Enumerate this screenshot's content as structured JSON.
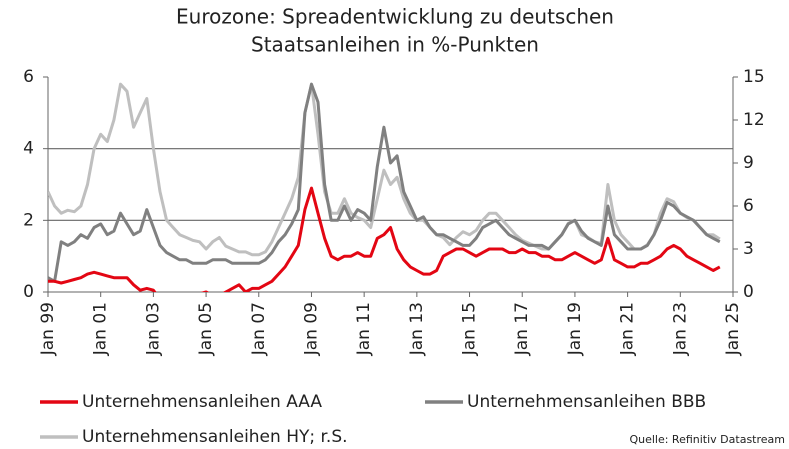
{
  "chart_data": {
    "type": "line",
    "title": [
      "Eurozone: Spreadentwicklung zu deutschen",
      "Staatsanleihen in %-Punkten"
    ],
    "source": "Quelle: Refinitiv Datastream",
    "xlim": [
      1999,
      2025
    ],
    "xticks": [
      {
        "value": 1999,
        "label": "Jan 99"
      },
      {
        "value": 2001,
        "label": "Jan 01"
      },
      {
        "value": 2003,
        "label": "Jan 03"
      },
      {
        "value": 2005,
        "label": "Jan 05"
      },
      {
        "value": 2007,
        "label": "Jan 07"
      },
      {
        "value": 2009,
        "label": "Jan 09"
      },
      {
        "value": 2011,
        "label": "Jan 11"
      },
      {
        "value": 2013,
        "label": "Jan 13"
      },
      {
        "value": 2015,
        "label": "Jan 15"
      },
      {
        "value": 2017,
        "label": "Jan 17"
      },
      {
        "value": 2019,
        "label": "Jan 19"
      },
      {
        "value": 2021,
        "label": "Jan 21"
      },
      {
        "value": 2023,
        "label": "Jan 23"
      },
      {
        "value": 2025,
        "label": "Jan 25"
      }
    ],
    "ylim": [
      0,
      6
    ],
    "yticks": [
      0,
      2,
      4,
      6
    ],
    "y2lim": [
      0,
      15
    ],
    "y2ticks": [
      0,
      3,
      6,
      9,
      12,
      15
    ],
    "grid": true,
    "x": [
      1999,
      1999.25,
      1999.5,
      1999.75,
      2000,
      2000.25,
      2000.5,
      2000.75,
      2001,
      2001.25,
      2001.5,
      2001.75,
      2002,
      2002.25,
      2002.5,
      2002.75,
      2003,
      2003.25,
      2003.5,
      2003.75,
      2004,
      2004.25,
      2004.5,
      2004.75,
      2005,
      2005.25,
      2005.5,
      2005.75,
      2006,
      2006.25,
      2006.5,
      2006.75,
      2007,
      2007.25,
      2007.5,
      2007.75,
      2008,
      2008.25,
      2008.5,
      2008.75,
      2009,
      2009.25,
      2009.5,
      2009.75,
      2010,
      2010.25,
      2010.5,
      2010.75,
      2011,
      2011.25,
      2011.5,
      2011.75,
      2012,
      2012.25,
      2012.5,
      2012.75,
      2013,
      2013.25,
      2013.5,
      2013.75,
      2014,
      2014.25,
      2014.5,
      2014.75,
      2015,
      2015.25,
      2015.5,
      2015.75,
      2016,
      2016.25,
      2016.5,
      2016.75,
      2017,
      2017.25,
      2017.5,
      2017.75,
      2018,
      2018.25,
      2018.5,
      2018.75,
      2019,
      2019.25,
      2019.5,
      2019.75,
      2020,
      2020.25,
      2020.5,
      2020.75,
      2021,
      2021.25,
      2021.5,
      2021.75,
      2022,
      2022.25,
      2022.5,
      2022.75,
      2023,
      2023.25,
      2023.5,
      2023.75,
      2024,
      2024.25,
      2024.5
    ],
    "series": [
      {
        "name": "Unternehmensanleihen HY; r.S.",
        "color": "#bfbfbf",
        "axis": "y2",
        "values": [
          7.0,
          6.0,
          5.5,
          5.7,
          5.6,
          6.0,
          7.5,
          10.0,
          11.0,
          10.5,
          12.0,
          14.5,
          14.0,
          11.5,
          12.5,
          13.5,
          10.0,
          7.0,
          5.0,
          4.5,
          4.0,
          3.8,
          3.6,
          3.5,
          3.0,
          3.5,
          3.8,
          3.2,
          3.0,
          2.8,
          2.8,
          2.6,
          2.6,
          2.8,
          3.5,
          4.5,
          5.5,
          6.5,
          8.0,
          12.5,
          14.5,
          11.0,
          7.0,
          5.5,
          5.5,
          6.5,
          5.5,
          5.2,
          5.0,
          4.5,
          6.5,
          8.5,
          7.5,
          8.0,
          6.5,
          5.5,
          5.0,
          5.0,
          4.5,
          4.0,
          3.8,
          3.3,
          3.8,
          4.2,
          4.0,
          4.3,
          5.0,
          5.5,
          5.5,
          5.0,
          4.5,
          4.0,
          3.6,
          3.4,
          3.2,
          3.0,
          3.0,
          3.5,
          4.0,
          4.8,
          5.0,
          4.0,
          3.8,
          3.5,
          3.4,
          7.5,
          5.0,
          4.0,
          3.5,
          3.0,
          3.0,
          3.3,
          4.0,
          5.5,
          6.5,
          6.3,
          5.5,
          5.2,
          5.0,
          4.5,
          4.0,
          4.0,
          3.7
        ]
      },
      {
        "name": "Unternehmensanleihen BBB",
        "color": "#808080",
        "values": [
          0.4,
          0.3,
          1.4,
          1.3,
          1.4,
          1.6,
          1.5,
          1.8,
          1.9,
          1.6,
          1.7,
          2.2,
          1.9,
          1.6,
          1.7,
          2.3,
          1.8,
          1.3,
          1.1,
          1.0,
          0.9,
          0.9,
          0.8,
          0.8,
          0.8,
          0.9,
          0.9,
          0.9,
          0.8,
          0.8,
          0.8,
          0.8,
          0.8,
          0.9,
          1.1,
          1.4,
          1.6,
          1.9,
          2.3,
          5.0,
          5.8,
          5.3,
          3.0,
          2.0,
          2.0,
          2.4,
          2.0,
          2.3,
          2.2,
          2.0,
          3.5,
          4.6,
          3.6,
          3.8,
          2.8,
          2.4,
          2.0,
          2.1,
          1.8,
          1.6,
          1.6,
          1.5,
          1.4,
          1.3,
          1.3,
          1.5,
          1.8,
          1.9,
          2.0,
          1.8,
          1.6,
          1.5,
          1.4,
          1.3,
          1.3,
          1.3,
          1.2,
          1.4,
          1.6,
          1.9,
          2.0,
          1.7,
          1.5,
          1.4,
          1.3,
          2.4,
          1.6,
          1.4,
          1.2,
          1.2,
          1.2,
          1.3,
          1.6,
          2.0,
          2.5,
          2.4,
          2.2,
          2.1,
          2.0,
          1.8,
          1.6,
          1.5,
          1.4
        ]
      },
      {
        "name": "Unternehmensanleihen AAA",
        "color": "#e30613",
        "values": [
          0.3,
          0.3,
          0.25,
          0.3,
          0.35,
          0.4,
          0.5,
          0.55,
          0.5,
          0.45,
          0.4,
          0.4,
          0.4,
          0.2,
          0.05,
          0.1,
          0.05,
          -0.2,
          -0.3,
          -0.3,
          -0.3,
          -0.2,
          -0.1,
          -0.05,
          0.0,
          -0.1,
          -0.1,
          0.0,
          0.1,
          0.2,
          0.0,
          0.1,
          0.1,
          0.2,
          0.3,
          0.5,
          0.7,
          1.0,
          1.3,
          2.3,
          2.9,
          2.2,
          1.5,
          1.0,
          0.9,
          1.0,
          1.0,
          1.1,
          1.0,
          1.0,
          1.5,
          1.6,
          1.8,
          1.2,
          0.9,
          0.7,
          0.6,
          0.5,
          0.5,
          0.6,
          1.0,
          1.1,
          1.2,
          1.2,
          1.1,
          1.0,
          1.1,
          1.2,
          1.2,
          1.2,
          1.1,
          1.1,
          1.2,
          1.1,
          1.1,
          1.0,
          1.0,
          0.9,
          0.9,
          1.0,
          1.1,
          1.0,
          0.9,
          0.8,
          0.9,
          1.5,
          0.9,
          0.8,
          0.7,
          0.7,
          0.8,
          0.8,
          0.9,
          1.0,
          1.2,
          1.3,
          1.2,
          1.0,
          0.9,
          0.8,
          0.7,
          0.6,
          0.7
        ]
      }
    ]
  }
}
